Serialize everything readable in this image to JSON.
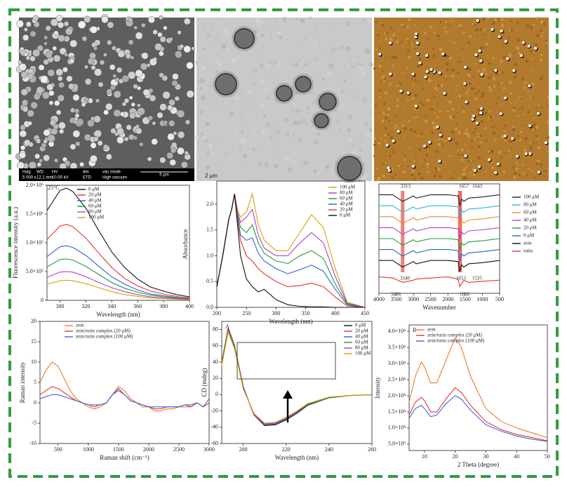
{
  "micrographs": {
    "sem": {
      "info_labels": [
        "mag",
        "WD",
        "HV",
        "det",
        "vac mode"
      ],
      "info_values": [
        "5 000 x",
        "12.1 mm",
        "10.00 kV",
        "ETD",
        "High vacuum"
      ],
      "scale": "5 μm"
    },
    "tem": {
      "scale": "2 μm"
    }
  },
  "chart_data": [
    {
      "type": "line",
      "annotation": "25°C",
      "annotation_color": "#e03030",
      "x_label": "Wavelength (nm)",
      "y_label": "Fluorescence intensity (a.u.)",
      "x": [
        290,
        300,
        305,
        310,
        320,
        330,
        340,
        350,
        360,
        370,
        380,
        390,
        400
      ],
      "series": [
        {
          "name": "0 μM",
          "color": "#111111",
          "values": [
            1560000,
            1910000,
            1950000,
            1890000,
            1600000,
            1210000,
            840000,
            570000,
            370000,
            230000,
            160000,
            100000,
            60000
          ]
        },
        {
          "name": "20 μM",
          "color": "#e8322e",
          "values": [
            1060000,
            1290000,
            1320000,
            1280000,
            1080000,
            820000,
            570000,
            380000,
            250000,
            160000,
            110000,
            70000,
            40000
          ]
        },
        {
          "name": "40 μM",
          "color": "#2f5fd0",
          "values": [
            760000,
            930000,
            950000,
            920000,
            780000,
            590000,
            410000,
            280000,
            180000,
            110000,
            80000,
            50000,
            30000
          ]
        },
        {
          "name": "60 μM",
          "color": "#1d9a3c",
          "values": [
            580000,
            710000,
            720000,
            700000,
            590000,
            450000,
            310000,
            210000,
            140000,
            90000,
            60000,
            40000,
            20000
          ]
        },
        {
          "name": "80 μM",
          "color": "#b03ec8",
          "values": [
            400000,
            490000,
            500000,
            490000,
            410000,
            310000,
            220000,
            150000,
            100000,
            60000,
            40000,
            30000,
            20000
          ]
        },
        {
          "name": "100 μM",
          "color": "#d9a400",
          "values": [
            280000,
            340000,
            350000,
            340000,
            290000,
            220000,
            150000,
            100000,
            70000,
            40000,
            30000,
            20000,
            10000
          ]
        }
      ],
      "xlim": [
        290,
        400
      ],
      "ylim": [
        0,
        2000000
      ],
      "xticks": [
        300,
        320,
        340,
        360,
        380,
        400
      ],
      "yticks": [
        0,
        {
          "value": 500000,
          "label": "5.0×10⁵"
        },
        {
          "value": 1000000,
          "label": "1.0×10⁶"
        },
        {
          "value": 1500000,
          "label": "1.5×10⁶"
        },
        {
          "value": 2000000,
          "label": "2.0×10⁶"
        }
      ]
    },
    {
      "type": "line",
      "x_label": "Wavelength (nm)",
      "y_label": "Absorbance",
      "x": [
        200,
        210,
        220,
        225,
        230,
        235,
        240,
        250,
        260,
        270,
        280,
        300,
        320,
        340,
        360,
        380,
        400,
        420,
        450
      ],
      "series": [
        {
          "name": "100 μM",
          "color": "#d9a400",
          "values": [
            0.4,
            1.0,
            1.7,
            1.9,
            2.2,
            1.9,
            1.75,
            1.85,
            2.2,
            1.6,
            1.3,
            1.1,
            1.1,
            1.45,
            1.8,
            1.55,
            0.75,
            0.1,
            0
          ]
        },
        {
          "name": "80 μM",
          "color": "#b03ec8",
          "values": [
            0.4,
            1.0,
            1.7,
            1.9,
            2.2,
            1.85,
            1.65,
            1.75,
            1.9,
            1.4,
            1.15,
            1.0,
            1.0,
            1.25,
            1.45,
            1.25,
            0.6,
            0.08,
            0
          ]
        },
        {
          "name": "60 μM",
          "color": "#1d9a3c",
          "values": [
            0.4,
            1.0,
            1.7,
            1.9,
            2.2,
            1.8,
            1.55,
            1.45,
            1.6,
            1.25,
            1.05,
            0.9,
            0.85,
            1.0,
            1.1,
            0.95,
            0.45,
            0.07,
            0
          ]
        },
        {
          "name": "40 μM",
          "color": "#2f5fd0",
          "values": [
            0.4,
            1.0,
            1.7,
            1.9,
            2.2,
            1.75,
            1.4,
            1.3,
            1.35,
            1.05,
            0.9,
            0.75,
            0.65,
            0.73,
            0.82,
            0.7,
            0.35,
            0.05,
            0
          ]
        },
        {
          "name": "20 μM",
          "color": "#e8322e",
          "values": [
            0.4,
            1.0,
            1.7,
            1.9,
            2.2,
            1.7,
            1.3,
            1.0,
            0.9,
            0.75,
            0.65,
            0.5,
            0.4,
            0.42,
            0.47,
            0.4,
            0.2,
            0.03,
            0
          ]
        },
        {
          "name": "0 μM",
          "color": "#111111",
          "values": [
            0.4,
            1.0,
            1.7,
            1.9,
            2.2,
            1.6,
            1.0,
            0.55,
            0.4,
            0.3,
            0.35,
            0.15,
            0.05,
            0.02,
            0.01,
            0.01,
            0,
            0,
            0
          ]
        }
      ],
      "xlim": [
        200,
        450
      ],
      "ylim": [
        0,
        2.45
      ],
      "xticks": [
        200,
        250,
        300,
        350,
        400,
        450
      ],
      "yticks": [
        {
          "value": 0,
          "label": "0.0"
        },
        0.5,
        {
          "value": 1,
          "label": "1.0"
        },
        1.5,
        {
          "value": 2,
          "label": "2.0"
        }
      ]
    },
    {
      "type": "line",
      "x_label": "Wavenumber",
      "annotations": [
        "3313",
        "1657",
        "1643",
        "3340",
        "1653",
        "1535",
        "3436",
        "1656"
      ],
      "highlights": [
        3313,
        1657,
        1643
      ],
      "highlight_color": "#e8605a",
      "x": [
        4000,
        3600,
        3313,
        3000,
        2920,
        2500,
        2000,
        1700,
        1657,
        1600,
        1540,
        1400,
        1000,
        500
      ],
      "series": [
        {
          "name": "100 μM",
          "color": "#222222",
          "values": [
            8,
            8,
            7.4,
            7.9,
            7.7,
            8,
            8,
            7.9,
            7.0,
            7.6,
            7.4,
            7.7,
            7.8,
            8
          ]
        },
        {
          "name": "80 μM",
          "color": "#29b8d8",
          "values": [
            7,
            7,
            6.4,
            6.9,
            6.7,
            7,
            7,
            6.9,
            6.0,
            6.6,
            6.4,
            6.7,
            6.8,
            7
          ]
        },
        {
          "name": "60 μM",
          "color": "#f08a24",
          "values": [
            6,
            6,
            5.4,
            5.9,
            5.7,
            6,
            6,
            5.9,
            5.0,
            5.6,
            5.4,
            5.7,
            5.8,
            6
          ]
        },
        {
          "name": "40 μM",
          "color": "#b03ec8",
          "values": [
            5,
            5,
            4.4,
            4.9,
            4.7,
            5,
            5,
            4.9,
            4.0,
            4.6,
            4.4,
            4.7,
            4.8,
            5
          ]
        },
        {
          "name": "20 μM",
          "color": "#1d9a3c",
          "values": [
            4,
            4,
            3.4,
            3.9,
            3.7,
            4,
            4,
            3.9,
            3.0,
            3.6,
            3.4,
            3.7,
            3.8,
            4
          ]
        },
        {
          "name": "0 μM",
          "color": "#2f5fd0",
          "values": [
            3,
            3,
            2.4,
            2.9,
            2.7,
            3,
            3,
            2.9,
            2.0,
            2.6,
            2.4,
            2.7,
            2.8,
            3
          ]
        },
        {
          "name": "zein",
          "color": "#111111",
          "values": [
            2,
            2,
            1.4,
            1.9,
            1.7,
            2,
            2,
            1.9,
            1.0,
            1.6,
            1.4,
            1.7,
            1.8,
            2
          ]
        },
        {
          "name": "rutin",
          "color": "#e8322e",
          "values": [
            0.5,
            0.4,
            0,
            0.2,
            0.3,
            0.4,
            0.5,
            0.3,
            -0.4,
            -0.1,
            0.2,
            0,
            0.1,
            0.2
          ]
        }
      ],
      "xlim": [
        4000,
        500
      ],
      "ylim": [
        -1,
        9
      ],
      "xticks": [
        4000,
        3500,
        3000,
        2500,
        2000,
        1500,
        1000,
        500
      ]
    },
    {
      "type": "line",
      "x_label": "Raman shift (cm⁻¹)",
      "y_label": "Raman intensity",
      "x": [
        200,
        300,
        400,
        500,
        600,
        700,
        800,
        900,
        1000,
        1100,
        1200,
        1300,
        1400,
        1500,
        1600,
        1700,
        1800,
        1900,
        2000,
        2100,
        2200,
        2300,
        2400,
        2500,
        2600,
        2700,
        2800,
        2900,
        3000
      ],
      "series": [
        {
          "name": "zein",
          "color": "#f07a22",
          "values": [
            5,
            8,
            10,
            9,
            6,
            3,
            1,
            0,
            -1,
            -1.5,
            -1,
            0,
            2,
            4,
            3,
            1,
            0,
            -1,
            -1,
            -2,
            -2,
            -1.5,
            -1.5,
            -1,
            -1,
            -1,
            0,
            -1,
            0
          ]
        },
        {
          "name": "zein/rutin complex (20 μM)",
          "color": "#e8322e",
          "values": [
            2,
            3,
            4,
            3.5,
            2.5,
            1.5,
            0.5,
            0,
            -0.5,
            -1,
            -0.5,
            0,
            2,
            3,
            2,
            0.5,
            0,
            -0.5,
            -1,
            -1.5,
            -1.5,
            -1,
            -1,
            -1,
            -0.5,
            -1,
            0,
            -1,
            0
          ]
        },
        {
          "name": "zein/rutin complex (100 μM)",
          "color": "#3a66d8",
          "values": [
            1,
            1.5,
            2,
            2,
            1.5,
            1,
            0.5,
            0,
            -0.5,
            -0.5,
            -0.5,
            0,
            2,
            3.5,
            2,
            0.5,
            0,
            -0.5,
            -1,
            -1,
            -1,
            -1,
            -1,
            -1,
            -0.5,
            -0.5,
            0,
            -1,
            1
          ]
        }
      ],
      "xlim": [
        200,
        3000
      ],
      "ylim": [
        -10,
        20
      ],
      "xticks": [
        500,
        1000,
        1500,
        2000,
        2500,
        3000
      ],
      "yticks": [
        -10,
        -5,
        0,
        5,
        10,
        15,
        20
      ]
    },
    {
      "type": "line",
      "panel_label": "A",
      "x_label": "Wavelength (nm)",
      "y_label": "CD (mdeg)",
      "x": [
        190,
        193,
        196,
        200,
        205,
        210,
        215,
        220,
        225,
        230,
        240,
        250,
        260
      ],
      "series": [
        {
          "name": "0 μM",
          "color": "#111111",
          "values": [
            40,
            82,
            60,
            10,
            -25,
            -38,
            -37,
            -31,
            -23,
            -13,
            -4,
            -1,
            0
          ]
        },
        {
          "name": "20 μM",
          "color": "#e8322e",
          "values": [
            39,
            81,
            59,
            9,
            -25,
            -37,
            -36,
            -30,
            -22,
            -12,
            -4,
            -1,
            0
          ]
        },
        {
          "name": "40 μM",
          "color": "#2f5fd0",
          "values": [
            38,
            80,
            58,
            9,
            -24,
            -37,
            -36,
            -30,
            -22,
            -12,
            -4,
            -1,
            0
          ]
        },
        {
          "name": "60 μM",
          "color": "#1d9a3c",
          "values": [
            38,
            79,
            58,
            8,
            -24,
            -36,
            -35,
            -29,
            -21,
            -12,
            -4,
            -1,
            0
          ]
        },
        {
          "name": "80 μM",
          "color": "#b03ec8",
          "values": [
            37,
            78,
            57,
            8,
            -24,
            -36,
            -35,
            -29,
            -21,
            -11,
            -3,
            -1,
            0
          ]
        },
        {
          "name": "100 μM",
          "color": "#d9a400",
          "values": [
            36,
            77,
            56,
            7,
            -23,
            -35,
            -34,
            -28,
            -20,
            -11,
            -3,
            -1,
            0
          ]
        }
      ],
      "xlim": [
        190,
        260
      ],
      "ylim": [
        -60,
        90
      ],
      "xticks": [
        200,
        220,
        240,
        260
      ],
      "yticks": [
        -60,
        -40,
        -20,
        0,
        20,
        40,
        60,
        80
      ]
    },
    {
      "type": "line",
      "panel_label": "B",
      "x_label": "2 Theta (degree)",
      "y_label": "Intensity",
      "x": [
        5,
        7,
        9,
        10,
        12,
        14,
        17,
        20,
        22,
        25,
        30,
        35,
        40,
        45,
        50
      ],
      "series": [
        {
          "name": "zein",
          "color": "#f07a22",
          "values": [
            18000,
            26000,
            30500,
            29000,
            24000,
            24000,
            31000,
            38000,
            35000,
            26000,
            16000,
            12000,
            10000,
            8500,
            7000
          ]
        },
        {
          "name": "zein/rutin complex (20 μM)",
          "color": "#e8322e",
          "values": [
            14000,
            18000,
            19500,
            18500,
            15000,
            15000,
            19000,
            22500,
            21000,
            17000,
            12000,
            9500,
            8000,
            7000,
            6000
          ]
        },
        {
          "name": "zein/rutin complex (100 μM)",
          "color": "#3a66d8",
          "values": [
            13000,
            16000,
            17000,
            16000,
            13500,
            14000,
            17500,
            20000,
            19000,
            15500,
            11000,
            9000,
            7500,
            6500,
            5800
          ]
        }
      ],
      "xlim": [
        5,
        50
      ],
      "ylim": [
        3000,
        42000
      ],
      "xticks": [
        10,
        20,
        30,
        40,
        50
      ],
      "yticks": [
        {
          "value": 5000,
          "label": "5.0×10³"
        },
        {
          "value": 10000,
          "label": "1.0×10⁴"
        },
        {
          "value": 15000,
          "label": "1.5×10⁴"
        },
        {
          "value": 20000,
          "label": "2.0×10⁴"
        },
        {
          "value": 25000,
          "label": "2.5×10⁴"
        },
        {
          "value": 30000,
          "label": "3.0×10⁴"
        },
        {
          "value": 35000,
          "label": "3.5×10⁴"
        },
        {
          "value": 40000,
          "label": "4.0×10⁴"
        }
      ]
    }
  ]
}
